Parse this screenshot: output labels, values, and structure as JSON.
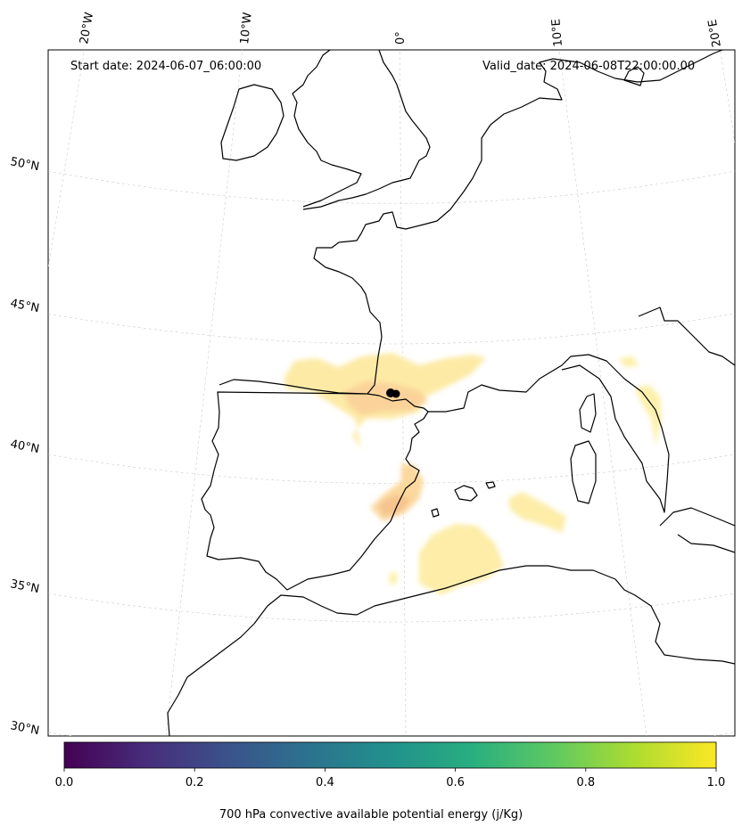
{
  "header": {
    "start_date": "Start date: 2024-06-07_06:00:00",
    "valid_date": "Valid_date: 2024-06-08T22:00:00.00"
  },
  "map": {
    "projection": "conic",
    "longitude_labels": [
      "20°W",
      "10°W",
      "0°",
      "10°E",
      "20°E"
    ],
    "latitude_labels": [
      "50°N",
      "45°N",
      "40°N",
      "35°N",
      "30°N"
    ],
    "coastline_color": "#000000",
    "gridline_color": "#cccccc",
    "field_colors": [
      "#fdf3a8",
      "#fde3a0",
      "#fbd59c",
      "#f7c98f"
    ],
    "marker_color": "#000000"
  },
  "colorbar": {
    "label": "700 hPa convective available potential energy (j/Kg)",
    "colormap": "viridis",
    "min": 0.0,
    "max": 1.0,
    "ticks": [
      "0.0",
      "0.2",
      "0.4",
      "0.6",
      "0.8",
      "1.0"
    ],
    "colors": [
      "#440154",
      "#3b528b",
      "#21918c",
      "#5ec962",
      "#fde725"
    ]
  }
}
